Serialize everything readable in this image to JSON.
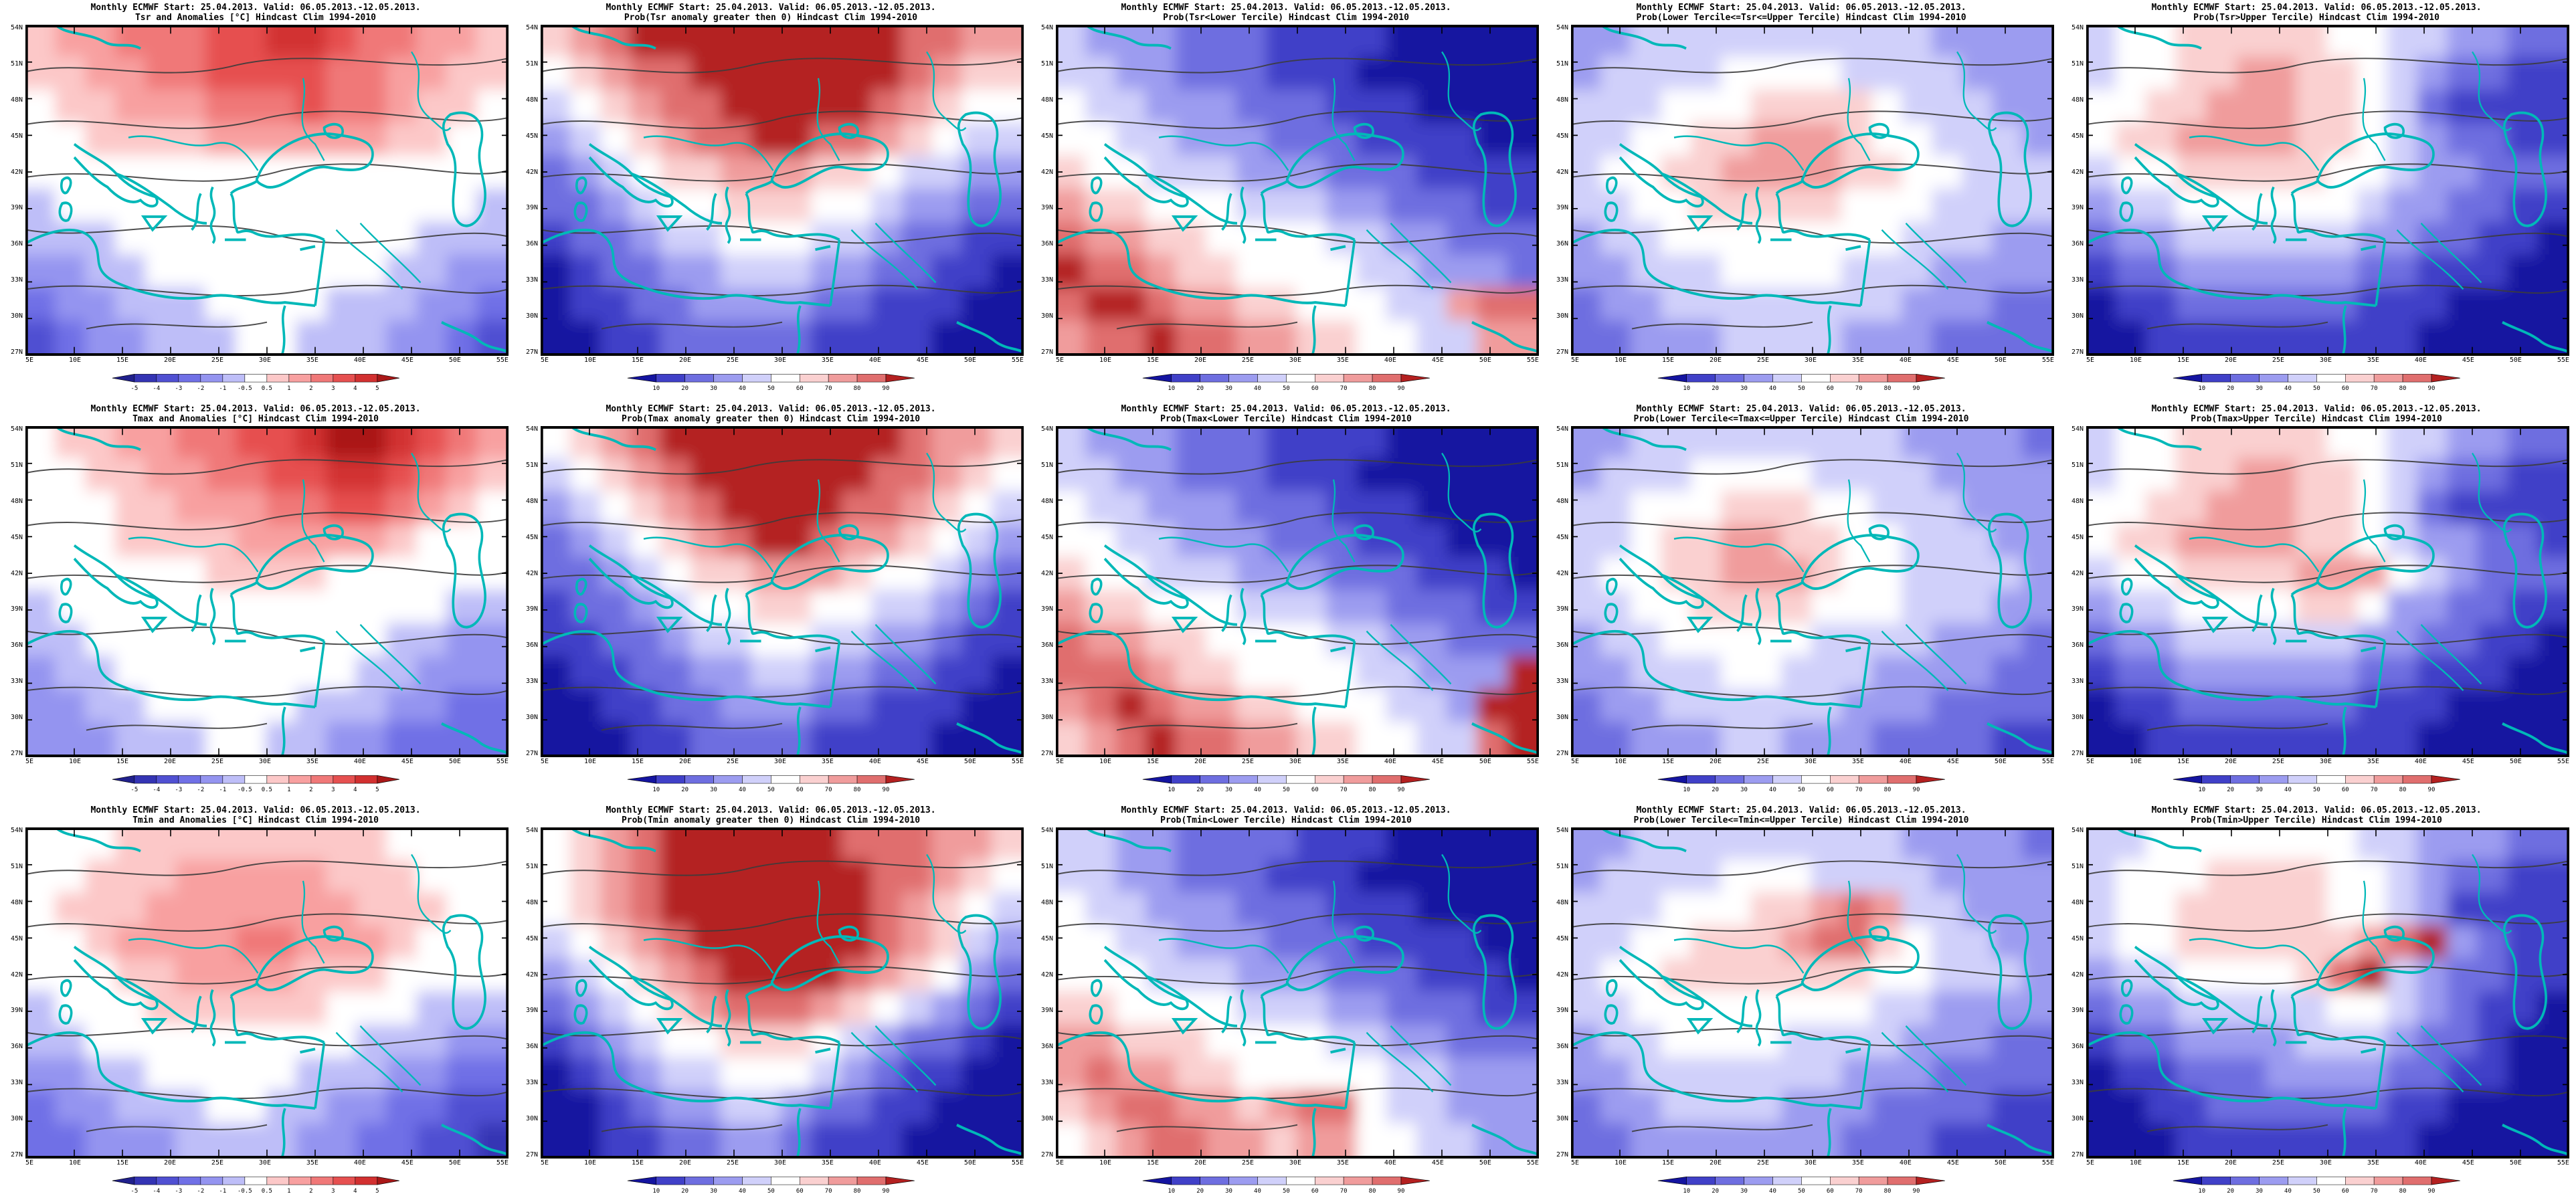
{
  "axes": {
    "lat": [
      "54N",
      "51N",
      "48N",
      "45N",
      "42N",
      "39N",
      "36N",
      "33N",
      "30N",
      "27N"
    ],
    "lon": [
      "5E",
      "10E",
      "15E",
      "20E",
      "25E",
      "30E",
      "35E",
      "40E",
      "45E",
      "50E",
      "55E"
    ]
  },
  "map": {
    "coast_color": "#00b8b8",
    "contour_color": "#3c3c3c",
    "border_color": "#000000"
  },
  "colorbars": {
    "anomaly": {
      "labels": [
        "-5",
        "-4",
        "-3",
        "-2",
        "-1",
        "-0.5",
        "0.5",
        "1",
        "2",
        "3",
        "4",
        "5"
      ],
      "colors": [
        "#20208c",
        "#3434b4",
        "#5050d2",
        "#7070e6",
        "#9494f0",
        "#bebef8",
        "#ffffff",
        "#fcc8c8",
        "#f8a0a0",
        "#f07878",
        "#e65050",
        "#d23030",
        "#aa1818"
      ]
    },
    "probability": {
      "labels": [
        "10",
        "20",
        "30",
        "40",
        "50",
        "60",
        "70",
        "80",
        "90"
      ],
      "colors": [
        "#1414a0",
        "#4040c8",
        "#6e6ee0",
        "#9c9cf0",
        "#d0d0fa",
        "#ffffff",
        "#fad0d0",
        "#f09c9c",
        "#e06e6e",
        "#b42020"
      ]
    }
  },
  "panels": [
    {
      "id": "tsr-anomalies",
      "title1": "Monthly ECMWF Start: 25.04.2013. Valid: 06.05.2013.-12.05.2013.",
      "title2": "Tsr and Anomalies [°C] Hindcast Clim 1994-2010",
      "colormap": "anomaly",
      "field": [
        "788999AABBA99887",
        "778899AAAA998877",
        "677888999A998776",
        "6677778888887766",
        "6666666666666666",
        "5666666666666665",
        "5556666666666555",
        "4455666666665544",
        "3445556666555443",
        "2344555665554432"
      ]
    },
    {
      "id": "tsr-prob-gt0",
      "title1": "Monthly ECMWF Start: 25.04.2013. Valid: 06.05.2013.-12.05.2013.",
      "title2": "Prob(Tsr anomaly greater then 0) Hindcast Clim 1994-2010",
      "colormap": "probability",
      "field": [
        "6789999999998877",
        "5678899999998766",
        "4567889999987655",
        "3456788998876544",
        "2345667776654433",
        "2234556665543322",
        "1223445554432211",
        "0122334443322110",
        "0112233332211100",
        "0011222221111000"
      ]
    },
    {
      "id": "tsr-prob-lower",
      "title1": "Monthly ECMWF Start: 25.04.2013. Valid: 06.05.2013.-12.05.2013.",
      "title2": "Prob(Tsr<Lower Tercile) Hindcast Clim 1994-2010",
      "colormap": "probability",
      "field": [
        "4333222111100000",
        "4433222111000000",
        "5443332221110000",
        "5544333222111100",
        "6554443332221111",
        "7665554443322211",
        "8776655554433222",
        "9887665555443332",
        "8998776655544788",
        "7889887766554477"
      ]
    },
    {
      "id": "tsr-prob-middle",
      "title1": "Monthly ECMWF Start: 25.04.2013. Valid: 06.05.2013.-12.05.2013.",
      "title2": "Prob(Lower Tercile<=Tsr<=Upper Tercile) Hindcast Clim 1994-2010",
      "colormap": "probability",
      "field": [
        "3344444444443333",
        "3444455554444333",
        "4445556666544433",
        "4455667776554443",
        "4556677776655444",
        "4455666665554444",
        "3445555555544433",
        "3344455554443333",
        "2334444444433322",
        "2233344443332222"
      ]
    },
    {
      "id": "tsr-prob-upper",
      "title1": "Monthly ECMWF Start: 25.04.2013. Valid: 06.05.2013.-12.05.2013.",
      "title2": "Prob(Tsr>Upper Tercile) Hindcast Clim 1994-2010",
      "colormap": "probability",
      "field": [
        "4556666655443322",
        "4556677665432211",
        "5566777665421111",
        "5667777665432211",
        "4556666655433222",
        "3445555554332211",
        "2334444443322110",
        "1223333332211100",
        "0112222221110000",
        "0011111111100000"
      ]
    },
    {
      "id": "tmax-anomalies",
      "title1": "Monthly ECMWF Start: 25.04.2013. Valid: 06.05.2013.-12.05.2013.",
      "title2": "Tmax and Anomalies [°C] Hindcast Clim 1994-2010",
      "colormap": "anomaly",
      "field": [
        "6778899AABCCBA98",
        "66778899AABBA987",
        "6667788899AA9876",
        "6667777888887666",
        "6666667777666666",
        "5666666666666655",
        "5566666666665544",
        "4556666666655444",
        "4455666665554433",
        "4445556655443333"
      ]
    },
    {
      "id": "tmax-prob-gt0",
      "title1": "Monthly ECMWF Start: 25.04.2013. Valid: 06.05.2013.-12.05.2013.",
      "title2": "Prob(Tmax anomaly greater then 0) Hindcast Clim 1994-2010",
      "colormap": "probability",
      "field": [
        "5678999999998776",
        "4567899999988765",
        "3456789999887654",
        "2345678998776543",
        "2234566777655432",
        "1223455665544321",
        "1122344554433211",
        "0112233443322110",
        "0011223332211100",
        "0001122221111000"
      ]
    },
    {
      "id": "tmax-prob-lower",
      "title1": "Monthly ECMWF Start: 25.04.2013. Valid: 06.05.2013.-12.05.2013.",
      "title2": "Prob(Tmax<Lower Tercile) Hindcast Clim 1994-2010",
      "colormap": "probability",
      "field": [
        "4333222111100000",
        "4433222111000000",
        "5443332221110000",
        "5544333222111000",
        "6554443332221110",
        "7665554443322211",
        "8776655554433222",
        "8887665555443339",
        "7898776655544399",
        "6789887766554489"
      ]
    },
    {
      "id": "tmax-prob-middle",
      "title1": "Monthly ECMWF Start: 25.04.2013. Valid: 06.05.2013.-12.05.2013.",
      "title2": "Prob(Lower Tercile<=Tmax<=Upper Tercile) Hindcast Clim 1994-2010",
      "colormap": "probability",
      "field": [
        "3344444444433332",
        "3444555544443333",
        "4455566655444333",
        "4456677665544433",
        "4556677765544443",
        "4455666655544433",
        "3445555544443332",
        "3344455444333322",
        "2334444443332222",
        "2233344333222211"
      ]
    },
    {
      "id": "tmax-prob-upper",
      "title1": "Monthly ECMWF Start: 25.04.2013. Valid: 06.05.2013.-12.05.2013.",
      "title2": "Prob(Tmax>Upper Tercile) Hindcast Clim 1994-2010",
      "colormap": "probability",
      "field": [
        "4556666655443322",
        "4556677665432211",
        "5566777665421111",
        "5667777665433221",
        "4556666777543222",
        "3445555665332211",
        "2334444443322110",
        "1223333332211100",
        "0112222221110000",
        "0011111111100000"
      ]
    },
    {
      "id": "tmin-anomalies",
      "title1": "Monthly ECMWF Start: 25.04.2013. Valid: 06.05.2013.-12.05.2013.",
      "title2": "Tmin and Anomalies [°C] Hindcast Clim 1994-2010",
      "colormap": "anomaly",
      "field": [
        "6667777777776666",
        "6677788888777666",
        "6777888888877766",
        "6678888998887666",
        "6667788887776666",
        "5666777777666555",
        "5566666666655544",
        "4455666665554433",
        "3445556655443322",
        "3344455554433221"
      ]
    },
    {
      "id": "tmin-prob-gt0",
      "title1": "Monthly ECMWF Start: 25.04.2013. Valid: 06.05.2013.-12.05.2013.",
      "title2": "Prob(Tmin anomaly greater then 0) Hindcast Clim 1994-2010",
      "colormap": "probability",
      "field": [
        "5678999999888776",
        "5678999999988765",
        "5678999999987654",
        "4567899999987643",
        "3456789999876532",
        "2345678887654321",
        "1234556665432210",
        "0123445554321100",
        "0012334432211000",
        "0011223321110000"
      ]
    },
    {
      "id": "tmin-prob-lower",
      "title1": "Monthly ECMWF Start: 25.04.2013. Valid: 06.05.2013.-12.05.2013.",
      "title2": "Prob(Tmin<Lower Tercile) Hindcast Clim 1994-2010",
      "colormap": "probability",
      "field": [
        "4433222211100000",
        "4433222111000000",
        "5443332221110000",
        "5544333222111100",
        "5554443332221110",
        "6655554443322211",
        "7766655554433222",
        "7877665555544333",
        "6788776788544333",
        "5678877677554433"
      ]
    },
    {
      "id": "tmin-prob-middle",
      "title1": "Monthly ECMWF Start: 25.04.2013. Valid: 06.05.2013.-12.05.2013.",
      "title2": "Prob(Lower Tercile<=Tmin<=Upper Tercile) Hindcast Clim 1994-2010",
      "colormap": "probability",
      "field": [
        "3344444444433332",
        "3444455544443333",
        "4445556678744333",
        "4455666788654433",
        "4556666666554443",
        "4455555555443333",
        "3445555444433322",
        "3344444443332222",
        "2334444333222211",
        "2233333332221111"
      ]
    },
    {
      "id": "tmin-prob-upper",
      "title1": "Monthly ECMWF Start: 25.04.2013. Valid: 06.05.2013.-12.05.2013.",
      "title2": "Prob(Tmin>Upper Tercile) Hindcast Clim 1994-2010",
      "colormap": "probability",
      "field": [
        "4455555554433322",
        "4555666655432211",
        "4556666655431111",
        "4556666667893211",
        "3445555689432211",
        "2334444455432110",
        "1223333444322100",
        "0112223333221100",
        "0011222222110000",
        "0001111111100000"
      ]
    }
  ]
}
